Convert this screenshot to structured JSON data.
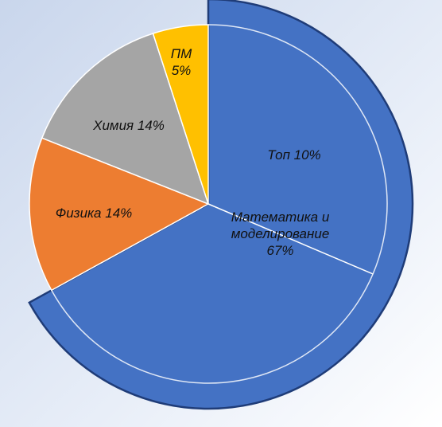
{
  "chart_data": {
    "type": "pie",
    "categories": [
      "Математика и моделирование",
      "Физика",
      "Химия",
      "ПМ"
    ],
    "values": [
      67,
      14,
      14,
      5
    ],
    "value_labels": [
      "67%",
      "14%",
      "14%",
      "5%"
    ],
    "colors": [
      "#4472c4",
      "#ed7d31",
      "#a5a5a5",
      "#ffc000"
    ],
    "annotation": "Топ 10%"
  }
}
